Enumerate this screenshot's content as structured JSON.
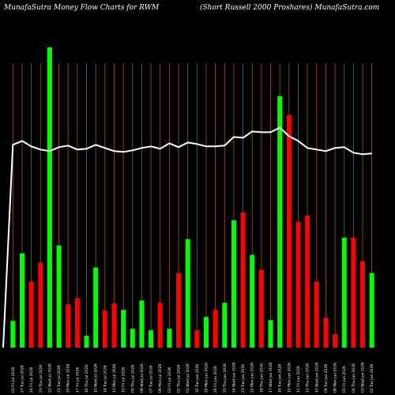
{
  "header": {
    "left": "MunafaSutra  Money Flow  Charts for RWM",
    "right": "(Short Russell 2000  Proshares) MunafaSutra.com"
  },
  "colors": {
    "up": "#00ff00",
    "down": "#ff0000",
    "grid": "#a05a00",
    "line": "#ffffff"
  },
  "chart_data": {
    "type": "bar",
    "bars": [
      {
        "label": "03 Fri Jul 2026",
        "color": "up",
        "value": 34
      },
      {
        "label": "27 Tue Jul 2026",
        "color": "up",
        "value": 120
      },
      {
        "label": "24 Fri Jul 2026",
        "color": "down",
        "value": 84
      },
      {
        "label": "23 Thu Jul 2026",
        "color": "down",
        "value": 108
      },
      {
        "label": "22 Wed Jul 2026",
        "color": "up",
        "value": 382
      },
      {
        "label": "21 Tue Jul 2026",
        "color": "up",
        "value": 130
      },
      {
        "label": "20 Mon Jul 2026",
        "color": "down",
        "value": 55
      },
      {
        "label": "17 Fri Jul 2026",
        "color": "down",
        "value": 63
      },
      {
        "label": "16 Thu Jul 2026",
        "color": "up",
        "value": 15
      },
      {
        "label": "15 Wed Jul 2026",
        "color": "up",
        "value": 102
      },
      {
        "label": "14 Tue Jul 2026",
        "color": "down",
        "value": 47
      },
      {
        "label": "13 Mon Jul 2026",
        "color": "down",
        "value": 56
      },
      {
        "label": "10 Fri Jul 2026",
        "color": "up",
        "value": 48
      },
      {
        "label": "09 Thu Jul 2026",
        "color": "up",
        "value": 24
      },
      {
        "label": "08 Wed Jul 2026",
        "color": "up",
        "value": 60
      },
      {
        "label": "07 Tue Jul 2026",
        "color": "up",
        "value": 22
      },
      {
        "label": "06 Mon Jul 2026",
        "color": "down",
        "value": 57
      },
      {
        "label": "03 Fri Jul 2026",
        "color": "up",
        "value": 24
      },
      {
        "label": "02 Thu Jul 2026",
        "color": "down",
        "value": 95
      },
      {
        "label": "01 Wed Jul 2026",
        "color": "up",
        "value": 138
      },
      {
        "label": "30 Tue Jun 2026",
        "color": "down",
        "value": 22
      },
      {
        "label": "29 Mon Jun 2026",
        "color": "up",
        "value": 39
      },
      {
        "label": "26 Fri Jun 2026",
        "color": "down",
        "value": 48
      },
      {
        "label": "25 Thu Jun 2026",
        "color": "up",
        "value": 57
      },
      {
        "label": "24 Wed Jun 2026",
        "color": "up",
        "value": 162
      },
      {
        "label": "23 Tue Jun 2026",
        "color": "down",
        "value": 172
      },
      {
        "label": "22 Mon Jun 2026",
        "color": "up",
        "value": 118
      },
      {
        "label": "18 Thu Jun 2026",
        "color": "down",
        "value": 99
      },
      {
        "label": "17 Wed Jun 2026",
        "color": "up",
        "value": 35
      },
      {
        "label": "16 Tue Jun 2026",
        "color": "up",
        "value": 320
      },
      {
        "label": "15 Mon Jun 2026",
        "color": "down",
        "value": 296
      },
      {
        "label": "12 Fri Jun 2026",
        "color": "down",
        "value": 160
      },
      {
        "label": "11 Thu Jun 2026",
        "color": "down",
        "value": 168
      },
      {
        "label": "10 Wed Jun 2026",
        "color": "down",
        "value": 84
      },
      {
        "label": "09 Tue Jun 2026",
        "color": "down",
        "value": 38
      },
      {
        "label": "08 Mon Jun 2026",
        "color": "down",
        "value": 17
      },
      {
        "label": "05 Fri Jun 2026",
        "color": "up",
        "value": 140
      },
      {
        "label": "04 Thu Jun 2026",
        "color": "down",
        "value": 140
      },
      {
        "label": "03 Wed Jun 2026",
        "color": "down",
        "value": 110
      },
      {
        "label": "02 Tue Jun 2026",
        "color": "up",
        "value": 95
      }
    ],
    "price_line": [
      0,
      258,
      263,
      256,
      252,
      250,
      255,
      257,
      252,
      253,
      258,
      254,
      250,
      249,
      251,
      254,
      256,
      253,
      260,
      255,
      261,
      259,
      256,
      256,
      257,
      268,
      267,
      275,
      274,
      274,
      280,
      269,
      263,
      254,
      252,
      250,
      254,
      255,
      248,
      246,
      247
    ],
    "ylim": [
      0,
      385
    ],
    "grid": "vertical",
    "legend": "none"
  }
}
